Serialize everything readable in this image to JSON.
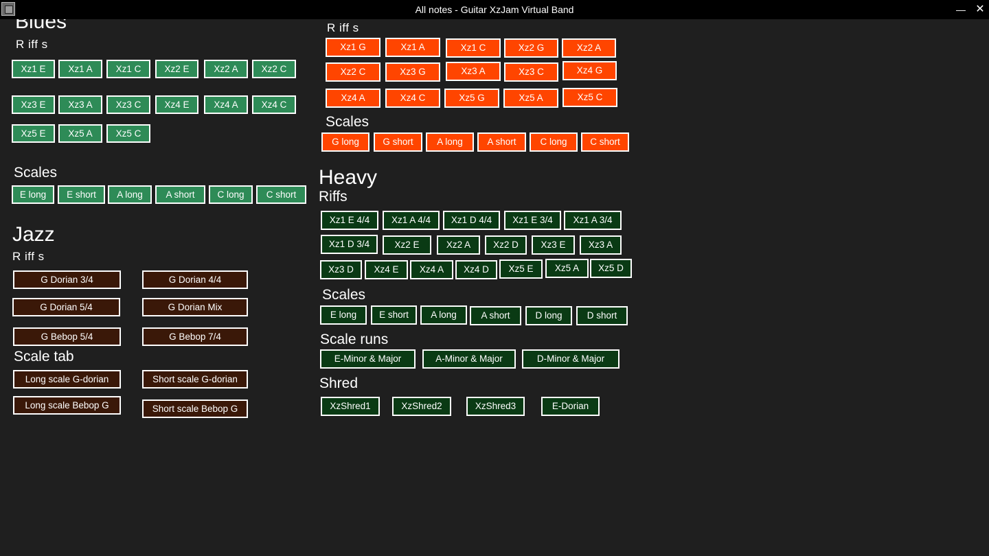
{
  "window": {
    "title": "All notes - Guitar XzJam Virtual Band",
    "minimize_glyph": "—",
    "close_glyph": "✕",
    "icon": "app-icon"
  },
  "colors": {
    "blues": "#2e8b57",
    "jazz": "#3a1808",
    "rock": "#ff4500",
    "heavy": "#0a3a14",
    "background": "#1f1f1f"
  },
  "blues": {
    "title": "Blues",
    "riffs_heading": "R iff s",
    "riffs": [
      "Xz1 E",
      "Xz1 A",
      "Xz1 C",
      "Xz2 E",
      "Xz2 A",
      "Xz2 C",
      "Xz3 E",
      "Xz3 A",
      "Xz3 C",
      "Xz4 E",
      "Xz4 A",
      "Xz4 C",
      "Xz5 E",
      "Xz5 A",
      "Xz5 C"
    ],
    "scales_heading": "Scales",
    "scales": [
      "E long",
      "E short",
      "A long",
      "A short",
      "C long",
      "C short"
    ]
  },
  "jazz": {
    "title": "Jazz",
    "riffs_heading": "R iff s",
    "riffs": [
      "G Dorian 3/4",
      "G Dorian 4/4",
      "G Dorian 5/4",
      "G Dorian Mix",
      "G Bebop 5/4",
      "G Bebop 7/4"
    ],
    "scale_tab_heading": "Scale tab",
    "scale_tab": [
      "Long scale G-dorian",
      "Short scale G-dorian",
      "Long scale Bebop G",
      "Short scale Bebop G"
    ]
  },
  "rock": {
    "riffs_heading": "R iff s",
    "riffs": [
      "Xz1 G",
      "Xz1 A",
      "Xz1 C",
      "Xz2 G",
      "Xz2 A",
      "Xz2 C",
      "Xz3 G",
      "Xz3 A",
      "Xz3 C",
      "Xz4 G",
      "Xz4 A",
      "Xz4 C",
      "Xz5 G",
      "Xz5 A",
      "Xz5 C"
    ],
    "scales_heading": "Scales",
    "scales": [
      "G long",
      "G short",
      "A long",
      "A short",
      "C long",
      "C short"
    ]
  },
  "heavy": {
    "title": "Heavy",
    "riffs_heading": "Riffs",
    "riffs": [
      "Xz1 E 4/4",
      "Xz1 A 4/4",
      "Xz1 D 4/4",
      "Xz1 E 3/4",
      "Xz1 A 3/4",
      "Xz1 D 3/4",
      "Xz2 E",
      "Xz2 A",
      "Xz2 D",
      "Xz3 E",
      "Xz3 A",
      "Xz3 D",
      "Xz4 E",
      "Xz4 A",
      "Xz4 D",
      "Xz5 E",
      "Xz5 A",
      "Xz5 D"
    ],
    "scales_heading": "Scales",
    "scales": [
      "E long",
      "E short",
      "A long",
      "A short",
      "D long",
      "D  short"
    ],
    "scale_runs_heading": "Scale runs",
    "scale_runs": [
      "E-Minor & Major",
      "A-Minor & Major",
      "D-Minor & Major"
    ],
    "shred_heading": "Shred",
    "shred": [
      "XzShred1",
      "XzShred2",
      "XzShred3",
      "E-Dorian"
    ]
  }
}
